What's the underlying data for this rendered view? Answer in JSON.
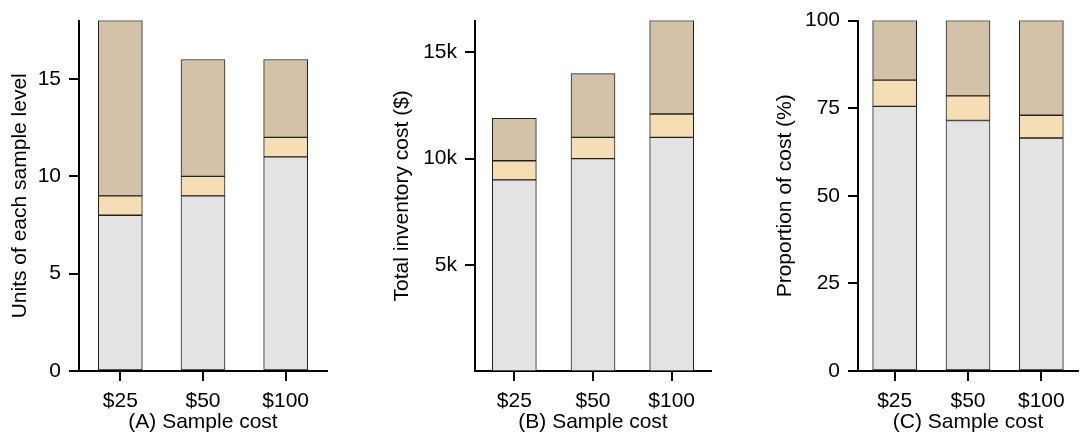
{
  "chart_data": [
    {
      "type": "bar",
      "stacked": true,
      "xlabel": "(A) Sample cost",
      "ylabel": "Units of each sample level",
      "categories": [
        "$25",
        "$50",
        "$100"
      ],
      "series": [
        {
          "color": "#e3e3e3",
          "values": [
            8,
            9,
            11
          ]
        },
        {
          "color": "#f5deb3",
          "values": [
            1,
            1,
            1
          ]
        },
        {
          "color": "#d3c1a8",
          "values": [
            9,
            6,
            4
          ]
        }
      ],
      "ylim": [
        0,
        18
      ],
      "yticks": [
        0,
        5,
        10,
        15
      ]
    },
    {
      "type": "bar",
      "stacked": true,
      "xlabel": "(B) Sample cost",
      "ylabel": "Total inventory cost ($)",
      "categories": [
        "$25",
        "$50",
        "$100"
      ],
      "series": [
        {
          "color": "#e3e3e3",
          "values": [
            9000,
            10000,
            11000
          ]
        },
        {
          "color": "#f5deb3",
          "values": [
            900,
            1000,
            1100
          ]
        },
        {
          "color": "#d3c1a8",
          "values": [
            2000,
            3000,
            4400
          ]
        }
      ],
      "ylim": [
        0,
        16500
      ],
      "yticks": [
        {
          "value": 5000,
          "label": "5k"
        },
        {
          "value": 10000,
          "label": "10k"
        },
        {
          "value": 15000,
          "label": "15k"
        }
      ]
    },
    {
      "type": "bar",
      "stacked": true,
      "xlabel": "(C) Sample cost",
      "ylabel": "Proportion of cost (%)",
      "categories": [
        "$25",
        "$50",
        "$100"
      ],
      "series": [
        {
          "color": "#e3e3e3",
          "values": [
            75.5,
            71.5,
            66.5
          ]
        },
        {
          "color": "#f5deb3",
          "values": [
            7.5,
            7,
            6.5
          ]
        },
        {
          "color": "#d3c1a8",
          "values": [
            17,
            21.5,
            27
          ]
        }
      ],
      "ylim": [
        0,
        100
      ],
      "yticks": [
        0,
        25,
        50,
        75,
        100
      ]
    }
  ]
}
